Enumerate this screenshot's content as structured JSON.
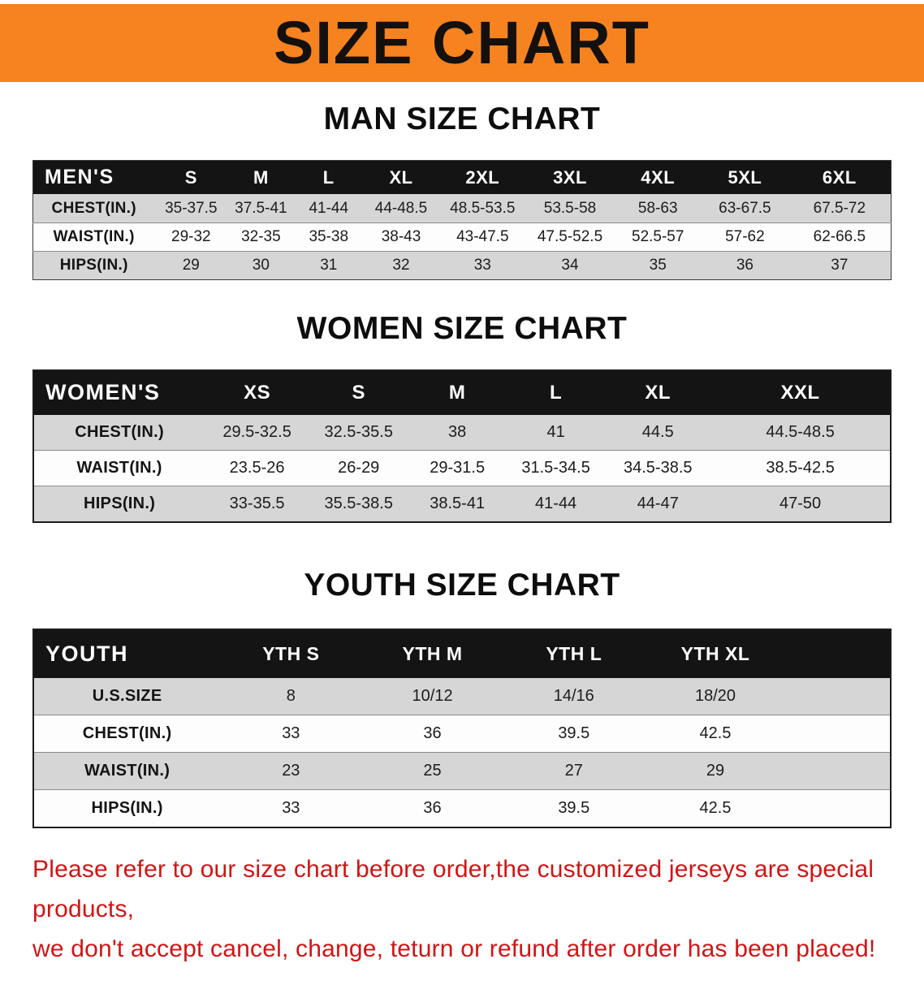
{
  "colors": {
    "banner_bg": "#f6831f",
    "header_bg": "#141414",
    "row_shaded": "#d6d6d6",
    "notice_red": "#d21414"
  },
  "banner": {
    "title": "SIZE CHART"
  },
  "sections": [
    {
      "heading": "MAN SIZE CHART",
      "table": {
        "header": [
          "MEN'S",
          "S",
          "M",
          "L",
          "XL",
          "2XL",
          "3XL",
          "4XL",
          "5XL",
          "6XL"
        ],
        "rows": [
          {
            "label": "CHEST(IN.)",
            "values": [
              "35-37.5",
              "37.5-41",
              "41-44",
              "44-48.5",
              "48.5-53.5",
              "53.5-58",
              "58-63",
              "63-67.5",
              "67.5-72"
            ]
          },
          {
            "label": "WAIST(IN.)",
            "values": [
              "29-32",
              "32-35",
              "35-38",
              "38-43",
              "43-47.5",
              "47.5-52.5",
              "52.5-57",
              "57-62",
              "62-66.5"
            ]
          },
          {
            "label": "HIPS(IN.)",
            "values": [
              "29",
              "30",
              "31",
              "32",
              "33",
              "34",
              "35",
              "36",
              "37"
            ]
          }
        ]
      }
    },
    {
      "heading": "WOMEN SIZE CHART",
      "table": {
        "header": [
          "WOMEN'S",
          "XS",
          "S",
          "M",
          "L",
          "XL",
          "XXL"
        ],
        "rows": [
          {
            "label": "CHEST(IN.)",
            "values": [
              "29.5-32.5",
              "32.5-35.5",
              "38",
              "41",
              "44.5",
              "44.5-48.5"
            ]
          },
          {
            "label": "WAIST(IN.)",
            "values": [
              "23.5-26",
              "26-29",
              "29-31.5",
              "31.5-34.5",
              "34.5-38.5",
              "38.5-42.5"
            ]
          },
          {
            "label": "HIPS(IN.)",
            "values": [
              "33-35.5",
              "35.5-38.5",
              "38.5-41",
              "41-44",
              "44-47",
              "47-50"
            ]
          }
        ]
      }
    },
    {
      "heading": "YOUTH SIZE CHART",
      "table": {
        "header": [
          "YOUTH",
          "YTH S",
          "YTH M",
          "YTH L",
          "YTH XL"
        ],
        "rows": [
          {
            "label": "U.S.SIZE",
            "values": [
              "8",
              "10/12",
              "14/16",
              "18/20"
            ]
          },
          {
            "label": "CHEST(IN.)",
            "values": [
              "33",
              "36",
              "39.5",
              "42.5"
            ]
          },
          {
            "label": "WAIST(IN.)",
            "values": [
              "23",
              "25",
              "27",
              "29"
            ]
          },
          {
            "label": "HIPS(IN.)",
            "values": [
              "33",
              "36",
              "39.5",
              "42.5"
            ]
          }
        ]
      }
    }
  ],
  "footer": {
    "line1": "Please refer to our size chart before order,the customized jerseys are special products,",
    "line2": "we don't accept cancel, change, teturn or refund after order has been placed!"
  }
}
